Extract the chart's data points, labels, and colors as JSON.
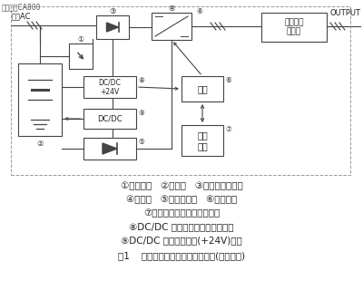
{
  "title": "图1    在线式可变频交流不间断电源(含变频器)",
  "watermark": "版权所有CA800",
  "input_label": "三相AC",
  "output_label": "OUTPUT",
  "box_transformer": "变压器及\n滤波器",
  "box_dcdc_24v": "DC/DC\n+24V",
  "box_dcdc": "DC/DC",
  "box_control": "控制",
  "box_hmi": "人机\n接口",
  "label1": "①充电模块   ②电池组   ③变频器整流模块",
  "label2": "④变频器   ⑤隔离二极管   ⑥逻辑控制",
  "label3": "⑦数字面板表及人机接口单元",
  "label4": "⑧DC/DC 直流变换器降压充电模块",
  "label5": "⑨DC/DC 降压工作电源(+24V)模块",
  "num1": "①",
  "num2": "②",
  "num3": "③",
  "num4": "④",
  "num5": "⑤",
  "num6": "⑥",
  "num7": "⑦",
  "num8": "⑧",
  "num9": "⑨"
}
